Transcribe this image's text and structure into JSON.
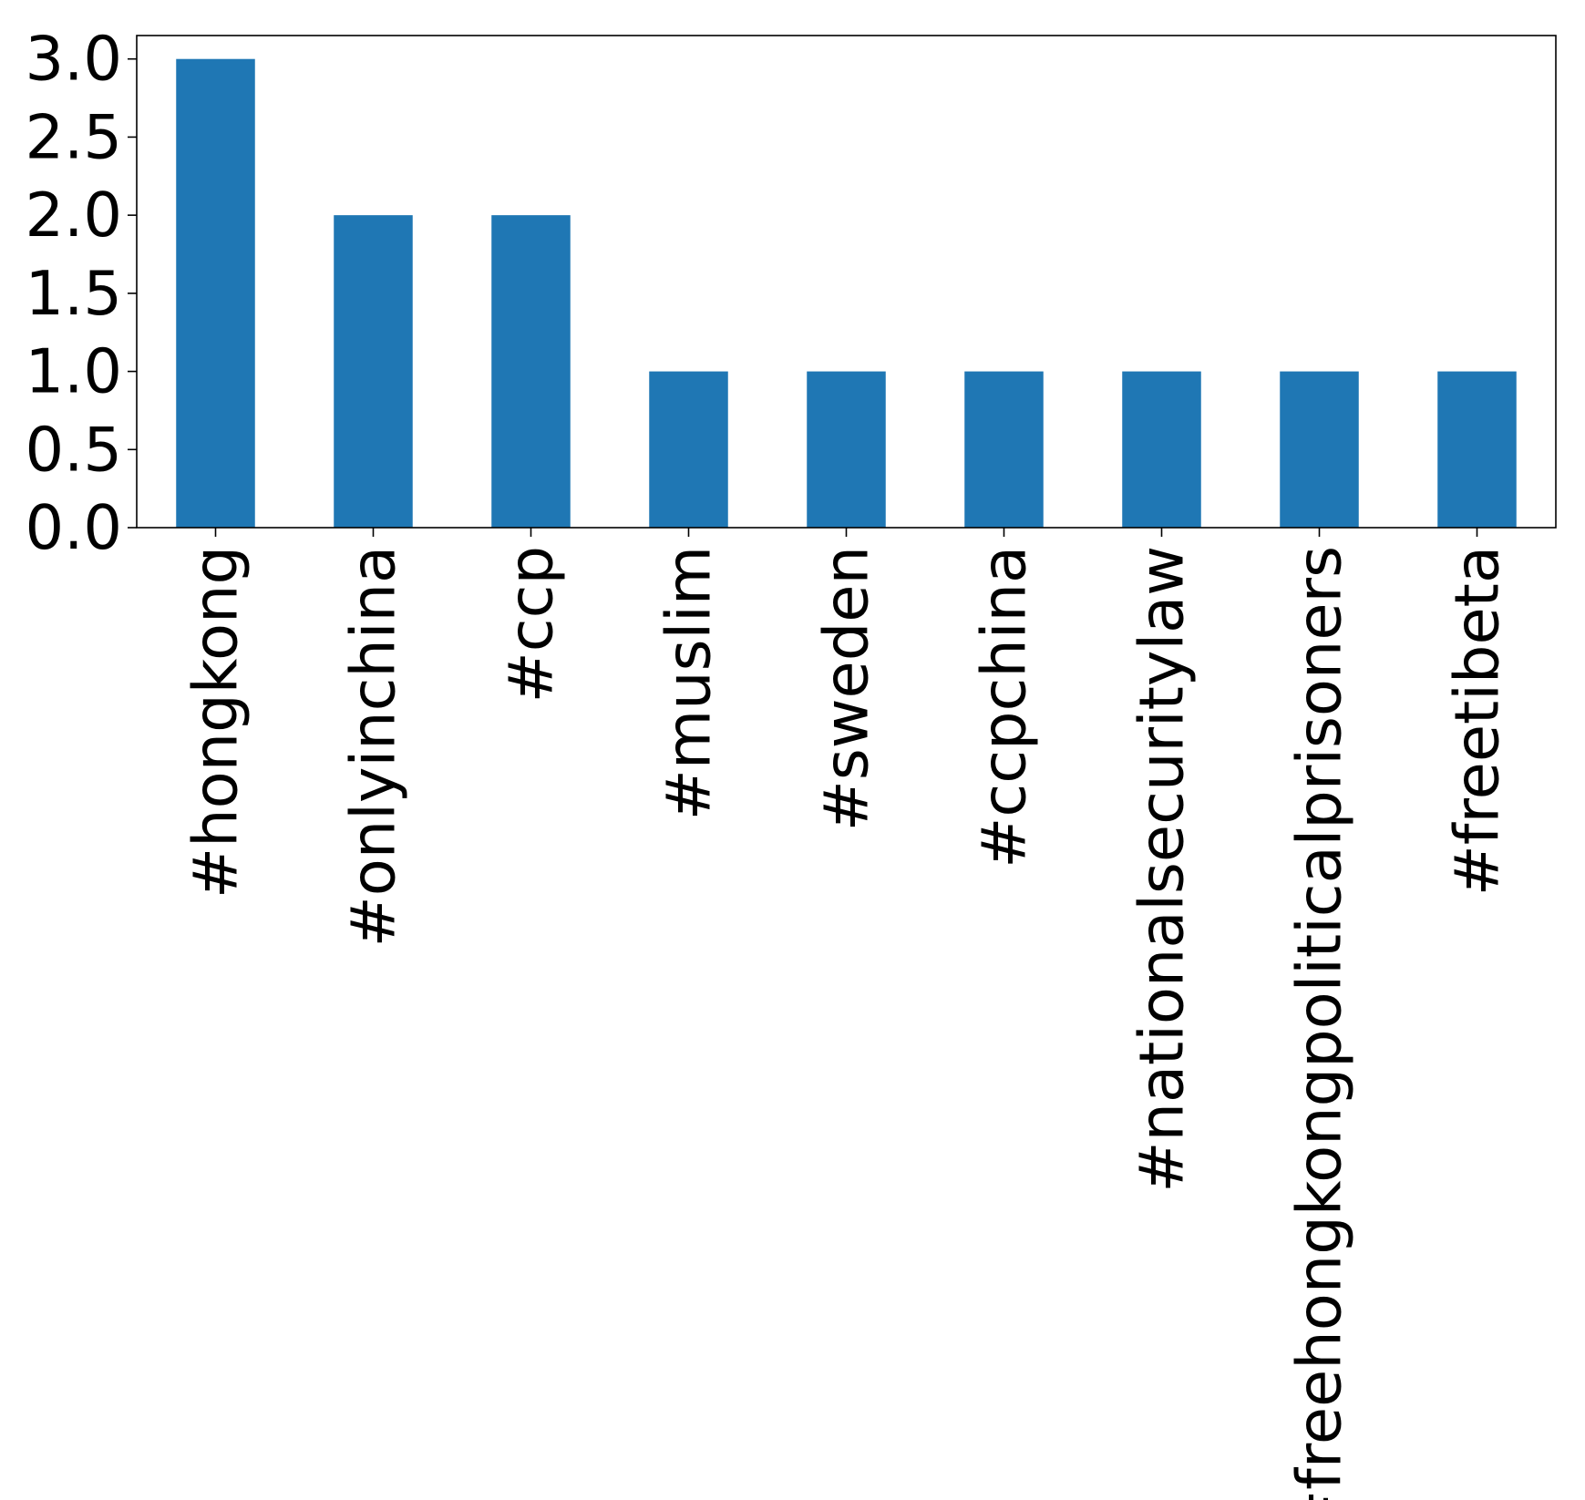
{
  "chart_data": {
    "type": "bar",
    "title": "",
    "xlabel": "",
    "ylabel": "",
    "categories": [
      "#hongkong",
      "#onlyinchina",
      "#ccp",
      "#muslim",
      "#sweden",
      "#ccpchina",
      "#nationalsecuritylaw",
      "#freehongkongpoliticalprisoners",
      "#freetibeta"
    ],
    "values": [
      3,
      2,
      2,
      1,
      1,
      1,
      1,
      1,
      1
    ],
    "ylim": [
      0,
      3.15
    ],
    "yticks": [
      "0.0",
      "0.5",
      "1.0",
      "1.5",
      "2.0",
      "2.5",
      "3.0"
    ],
    "legend": "none",
    "grid": false,
    "colors": {
      "bar": "#1f77b4",
      "axes": "#000000",
      "background": "#ffffff"
    }
  }
}
